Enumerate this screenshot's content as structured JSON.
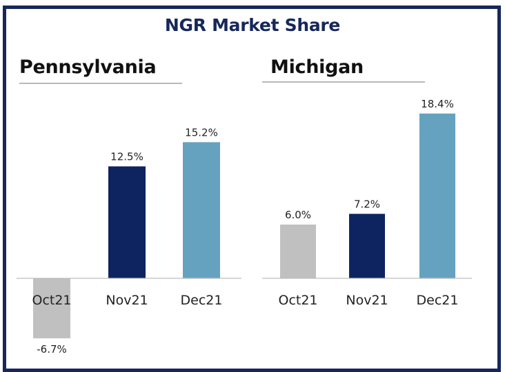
{
  "title": "NGR Market Share",
  "colors": {
    "frame": "#16275a",
    "oct": "#c0c0c0",
    "nov": "#0d2461",
    "dec": "#65a2bf"
  },
  "chart_data": [
    {
      "type": "bar",
      "title": "Pennsylvania",
      "categories": [
        "Oct21",
        "Nov21",
        "Dec21"
      ],
      "values": [
        -6.7,
        12.5,
        15.2
      ],
      "labels": [
        "-6.7%",
        "12.5%",
        "15.2%"
      ],
      "unit": "%"
    },
    {
      "type": "bar",
      "title": "Michigan",
      "categories": [
        "Oct21",
        "Nov21",
        "Dec21"
      ],
      "values": [
        6.0,
        7.2,
        18.4
      ],
      "labels": [
        "6.0%",
        "7.2%",
        "18.4%"
      ],
      "unit": "%"
    }
  ]
}
